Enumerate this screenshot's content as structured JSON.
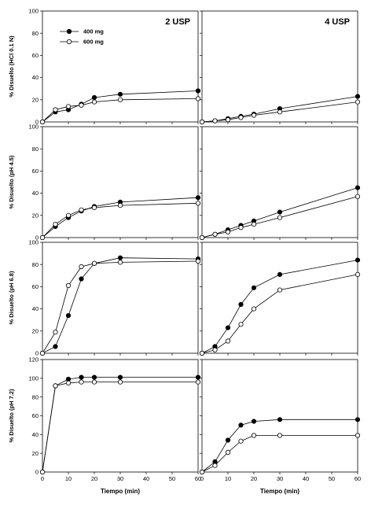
{
  "figure": {
    "legend": {
      "placement": "top-left of first panel",
      "entries": [
        "400 mg",
        "600 mg"
      ]
    },
    "columns": [
      {
        "title": "2 USP",
        "xlabel": "Tiempo (min)"
      },
      {
        "title": "4 USP",
        "xlabel": "Tiempo (min)"
      }
    ]
  },
  "chart_data": [
    {
      "type": "line",
      "row": 0,
      "col": 0,
      "title": "2 USP",
      "xlabel": "",
      "ylabel": "% Disuelto (HCl 0.1 N)",
      "xlim": [
        0,
        60
      ],
      "ylim": [
        0,
        100
      ],
      "xticks": [
        0,
        10,
        20,
        30,
        40,
        50,
        60
      ],
      "yticks": [
        0,
        20,
        40,
        60,
        80,
        100
      ],
      "series": [
        {
          "name": "400 mg",
          "marker": "filled",
          "x": [
            0,
            5,
            10,
            15,
            20,
            30,
            60
          ],
          "y": [
            0,
            9,
            11,
            16,
            22,
            25,
            28
          ]
        },
        {
          "name": "600 mg",
          "marker": "open",
          "x": [
            0,
            5,
            10,
            15,
            20,
            30,
            60
          ],
          "y": [
            0,
            11,
            14,
            15,
            18,
            20,
            21
          ]
        }
      ]
    },
    {
      "type": "line",
      "row": 0,
      "col": 1,
      "title": "4 USP",
      "xlabel": "",
      "ylabel": "",
      "xlim": [
        0,
        60
      ],
      "ylim": [
        0,
        100
      ],
      "xticks": [
        0,
        10,
        20,
        30,
        40,
        50,
        60
      ],
      "yticks": [
        0,
        20,
        40,
        60,
        80,
        100
      ],
      "series": [
        {
          "name": "400 mg",
          "marker": "filled",
          "x": [
            0,
            5,
            10,
            15,
            20,
            30,
            60
          ],
          "y": [
            0,
            1,
            3,
            5,
            7,
            12,
            23
          ]
        },
        {
          "name": "600 mg",
          "marker": "open",
          "x": [
            0,
            5,
            10,
            15,
            20,
            30,
            60
          ],
          "y": [
            0,
            1,
            2,
            4,
            6,
            9,
            18
          ]
        }
      ]
    },
    {
      "type": "line",
      "row": 1,
      "col": 0,
      "title": "",
      "xlabel": "",
      "ylabel": "% Disuelto (pH 4.5)",
      "xlim": [
        0,
        60
      ],
      "ylim": [
        0,
        100
      ],
      "xticks": [
        0,
        10,
        20,
        30,
        40,
        50,
        60
      ],
      "yticks": [
        0,
        20,
        40,
        60,
        80,
        100
      ],
      "series": [
        {
          "name": "400 mg",
          "marker": "filled",
          "x": [
            0,
            5,
            10,
            15,
            20,
            30,
            60
          ],
          "y": [
            0,
            10,
            18,
            24,
            28,
            32,
            36
          ]
        },
        {
          "name": "600 mg",
          "marker": "open",
          "x": [
            0,
            5,
            10,
            15,
            20,
            30,
            60
          ],
          "y": [
            0,
            12,
            20,
            25,
            27,
            29,
            31
          ]
        }
      ]
    },
    {
      "type": "line",
      "row": 1,
      "col": 1,
      "title": "",
      "xlabel": "",
      "ylabel": "",
      "xlim": [
        0,
        60
      ],
      "ylim": [
        0,
        100
      ],
      "xticks": [
        0,
        10,
        20,
        30,
        40,
        50,
        60
      ],
      "yticks": [
        0,
        20,
        40,
        60,
        80,
        100
      ],
      "series": [
        {
          "name": "400 mg",
          "marker": "filled",
          "x": [
            0,
            5,
            10,
            15,
            20,
            30,
            60
          ],
          "y": [
            0,
            3,
            7,
            11,
            15,
            23,
            45
          ]
        },
        {
          "name": "600 mg",
          "marker": "open",
          "x": [
            0,
            5,
            10,
            15,
            20,
            30,
            60
          ],
          "y": [
            0,
            3,
            5,
            9,
            12,
            18,
            37
          ]
        }
      ]
    },
    {
      "type": "line",
      "row": 2,
      "col": 0,
      "title": "",
      "xlabel": "",
      "ylabel": "% Disuelto (pH 6.8)",
      "xlim": [
        0,
        60
      ],
      "ylim": [
        0,
        100
      ],
      "xticks": [
        0,
        10,
        20,
        30,
        40,
        50,
        60
      ],
      "yticks": [
        0,
        20,
        40,
        60,
        80,
        100
      ],
      "series": [
        {
          "name": "400 mg",
          "marker": "filled",
          "x": [
            0,
            5,
            10,
            15,
            20,
            30,
            60
          ],
          "y": [
            0,
            6,
            34,
            67,
            81,
            86,
            85
          ]
        },
        {
          "name": "600 mg",
          "marker": "open",
          "x": [
            0,
            5,
            10,
            15,
            20,
            30,
            60
          ],
          "y": [
            0,
            19,
            61,
            78,
            81,
            82,
            83
          ]
        }
      ]
    },
    {
      "type": "line",
      "row": 2,
      "col": 1,
      "title": "",
      "xlabel": "",
      "ylabel": "",
      "xlim": [
        0,
        60
      ],
      "ylim": [
        0,
        100
      ],
      "xticks": [
        0,
        10,
        20,
        30,
        40,
        50,
        60
      ],
      "yticks": [
        0,
        20,
        40,
        60,
        80,
        100
      ],
      "series": [
        {
          "name": "400 mg",
          "marker": "filled",
          "x": [
            0,
            5,
            10,
            15,
            20,
            30,
            60
          ],
          "y": [
            0,
            6,
            23,
            44,
            59,
            71,
            84
          ]
        },
        {
          "name": "600 mg",
          "marker": "open",
          "x": [
            0,
            5,
            10,
            15,
            20,
            30,
            60
          ],
          "y": [
            0,
            3,
            11,
            26,
            40,
            57,
            71
          ]
        }
      ]
    },
    {
      "type": "line",
      "row": 3,
      "col": 0,
      "title": "",
      "xlabel": "Tiempo (min)",
      "ylabel": "% Disuelto (pH 7.2)",
      "xlim": [
        0,
        60
      ],
      "ylim": [
        0,
        120
      ],
      "xticks": [
        0,
        10,
        20,
        30,
        40,
        50,
        60
      ],
      "yticks": [
        0,
        20,
        40,
        60,
        80,
        100,
        120
      ],
      "series": [
        {
          "name": "400 mg",
          "marker": "filled",
          "x": [
            0,
            5,
            10,
            15,
            20,
            30,
            60
          ],
          "y": [
            0,
            92,
            99,
            101,
            101,
            101,
            101
          ]
        },
        {
          "name": "600 mg",
          "marker": "open",
          "x": [
            0,
            5,
            10,
            15,
            20,
            30,
            60
          ],
          "y": [
            0,
            92,
            95,
            96,
            96,
            96,
            96
          ]
        }
      ]
    },
    {
      "type": "line",
      "row": 3,
      "col": 1,
      "title": "",
      "xlabel": "Tiempo (min)",
      "ylabel": "",
      "xlim": [
        0,
        60
      ],
      "ylim": [
        0,
        120
      ],
      "xticks": [
        0,
        10,
        20,
        30,
        40,
        50,
        60
      ],
      "yticks": [
        0,
        20,
        40,
        60,
        80,
        100,
        120
      ],
      "series": [
        {
          "name": "400 mg",
          "marker": "filled",
          "x": [
            0,
            5,
            10,
            15,
            20,
            30,
            60
          ],
          "y": [
            0,
            11,
            34,
            50,
            54,
            56,
            56
          ]
        },
        {
          "name": "600 mg",
          "marker": "open",
          "x": [
            0,
            5,
            10,
            15,
            20,
            30,
            60
          ],
          "y": [
            0,
            7,
            21,
            33,
            39,
            39,
            39
          ]
        }
      ]
    }
  ]
}
